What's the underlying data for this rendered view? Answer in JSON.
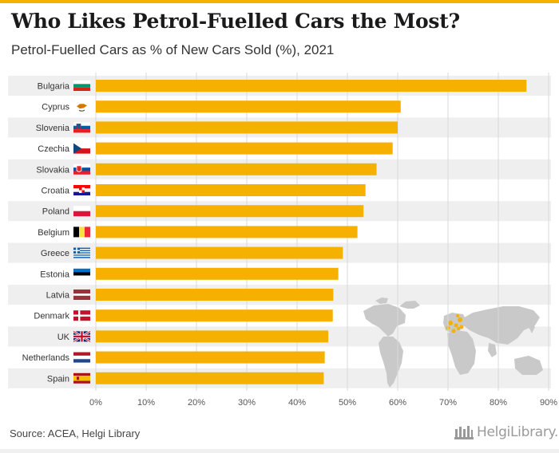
{
  "title": "Who Likes Petrol-Fuelled Cars the Most?",
  "subtitle": "Petrol-Fuelled Cars as % of New Cars Sold (%), 2021",
  "source": "Source: ACEA, Helgi Library",
  "brand": {
    "name": "HelgiLibrary.",
    "logo_icon": "library-columns-icon"
  },
  "colors": {
    "bar": "#f5b000",
    "stripe": "#efefef",
    "accent": "#f5b000",
    "map": "#c9c9c9",
    "map_highlight": "#f5b000"
  },
  "chart_data": {
    "type": "bar",
    "orientation": "horizontal",
    "categories": [
      "Bulgaria",
      "Cyprus",
      "Slovenia",
      "Czechia",
      "Slovakia",
      "Croatia",
      "Poland",
      "Belgium",
      "Greece",
      "Estonia",
      "Latvia",
      "Denmark",
      "UK",
      "Netherlands",
      "Spain"
    ],
    "values": [
      85.6,
      60.6,
      60.0,
      59.0,
      55.8,
      53.6,
      53.2,
      52.0,
      49.1,
      48.2,
      47.2,
      47.1,
      46.2,
      45.5,
      45.3
    ],
    "xlim": [
      0,
      90
    ],
    "xticks": [
      0,
      10,
      20,
      30,
      40,
      50,
      60,
      70,
      80,
      90
    ],
    "tick_format": "{v}%",
    "grid": "vertical",
    "legend": "none"
  }
}
